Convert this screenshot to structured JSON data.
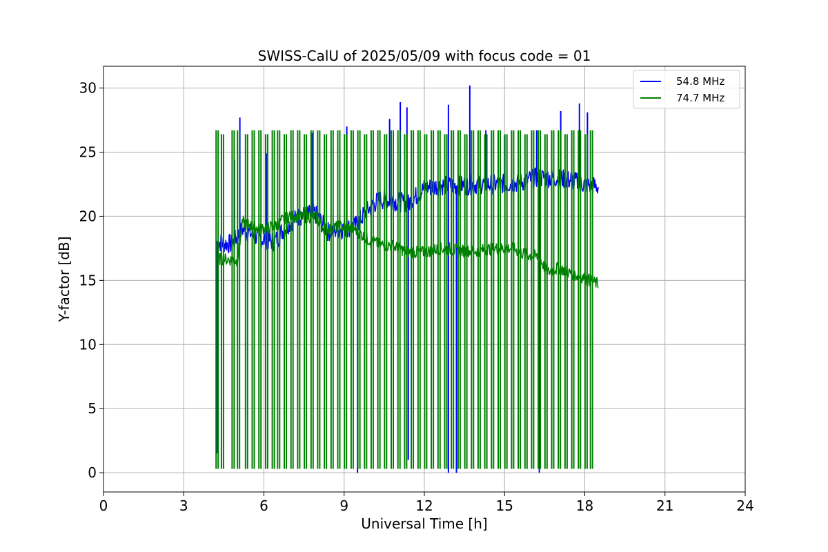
{
  "chart_data": {
    "type": "line",
    "title": "SWISS-CalU of 2025/05/09 with focus code = 01",
    "xlabel": "Universal Time [h]",
    "ylabel": "Y-factor [dB]",
    "xlim": [
      0,
      24
    ],
    "ylim": [
      -1.5,
      31.7
    ],
    "xticks": [
      0,
      3,
      6,
      9,
      12,
      15,
      18,
      21,
      24
    ],
    "yticks": [
      0,
      5,
      10,
      15,
      20,
      25,
      30
    ],
    "grid": true,
    "legend_position": "top-right",
    "series": [
      {
        "name": "54.8 MHz",
        "color": "#0000ff",
        "baseline": [
          [
            4.25,
            18.0
          ],
          [
            4.8,
            17.8
          ],
          [
            5.2,
            19.0
          ],
          [
            5.8,
            18.3
          ],
          [
            6.4,
            18.0
          ],
          [
            6.8,
            19.2
          ],
          [
            7.3,
            20.0
          ],
          [
            7.9,
            20.2
          ],
          [
            8.4,
            18.8
          ],
          [
            8.9,
            19.0
          ],
          [
            9.4,
            19.2
          ],
          [
            9.8,
            20.3
          ],
          [
            10.3,
            21.3
          ],
          [
            10.8,
            21.2
          ],
          [
            11.4,
            21.0
          ],
          [
            12.0,
            22.2
          ],
          [
            12.6,
            22.4
          ],
          [
            13.3,
            22.4
          ],
          [
            14.0,
            22.5
          ],
          [
            14.8,
            22.5
          ],
          [
            15.5,
            22.6
          ],
          [
            16.2,
            23.0
          ],
          [
            16.9,
            23.0
          ],
          [
            17.5,
            22.8
          ],
          [
            18.0,
            22.5
          ],
          [
            18.5,
            22.3
          ]
        ],
        "spikes": [
          [
            4.25,
            1.5
          ],
          [
            5.1,
            27.7
          ],
          [
            4.9,
            24.4
          ],
          [
            6.1,
            24.9
          ],
          [
            7.8,
            26.5
          ],
          [
            9.1,
            27.0
          ],
          [
            10.7,
            27.6
          ],
          [
            11.1,
            28.9
          ],
          [
            11.35,
            28.5
          ],
          [
            12.9,
            28.7
          ],
          [
            13.7,
            30.2
          ],
          [
            14.3,
            26.7
          ],
          [
            15.0,
            26.3
          ],
          [
            16.2,
            26.7
          ],
          [
            17.1,
            28.2
          ],
          [
            17.8,
            28.8
          ],
          [
            18.1,
            28.1
          ],
          [
            11.4,
            1.0
          ],
          [
            12.9,
            0.0
          ],
          [
            13.2,
            0.0
          ],
          [
            16.3,
            0.0
          ],
          [
            9.5,
            0.0
          ]
        ]
      },
      {
        "name": "74.7 MHz",
        "color": "#008000",
        "baseline": [
          [
            4.25,
            16.7
          ],
          [
            4.8,
            16.6
          ],
          [
            5.0,
            16.5
          ],
          [
            5.2,
            19.5
          ],
          [
            5.8,
            19.0
          ],
          [
            6.4,
            19.2
          ],
          [
            6.9,
            20.0
          ],
          [
            7.4,
            20.0
          ],
          [
            7.9,
            20.0
          ],
          [
            8.3,
            19.0
          ],
          [
            8.8,
            19.2
          ],
          [
            9.4,
            19.0
          ],
          [
            9.8,
            18.3
          ],
          [
            10.3,
            17.8
          ],
          [
            10.8,
            17.7
          ],
          [
            11.4,
            17.2
          ],
          [
            12.0,
            17.2
          ],
          [
            12.6,
            17.5
          ],
          [
            13.3,
            17.3
          ],
          [
            14.0,
            17.3
          ],
          [
            14.6,
            17.5
          ],
          [
            15.3,
            17.5
          ],
          [
            15.8,
            17.0
          ],
          [
            16.3,
            16.8
          ],
          [
            16.6,
            15.6
          ],
          [
            17.0,
            16.0
          ],
          [
            17.5,
            15.5
          ],
          [
            18.0,
            15.2
          ],
          [
            18.5,
            14.7
          ]
        ],
        "pulse_times": [
          4.25,
          4.45,
          4.85,
          5.05,
          5.35,
          5.6,
          5.85,
          6.1,
          6.35,
          6.55,
          6.8,
          7.05,
          7.3,
          7.55,
          7.8,
          8.05,
          8.3,
          8.55,
          8.8,
          9.05,
          9.3,
          9.55,
          9.8,
          10.05,
          10.3,
          10.55,
          10.8,
          11.05,
          11.3,
          11.55,
          11.8,
          12.05,
          12.3,
          12.55,
          12.8,
          13.05,
          13.3,
          13.55,
          13.8,
          14.05,
          14.3,
          14.55,
          14.8,
          15.05,
          15.3,
          15.55,
          15.8,
          16.05,
          16.3,
          16.55,
          16.8,
          17.05,
          17.3,
          17.55,
          17.8,
          18.05,
          18.25
        ],
        "pulse_top": 26.7,
        "pulse_bottom": 0.3
      }
    ]
  }
}
